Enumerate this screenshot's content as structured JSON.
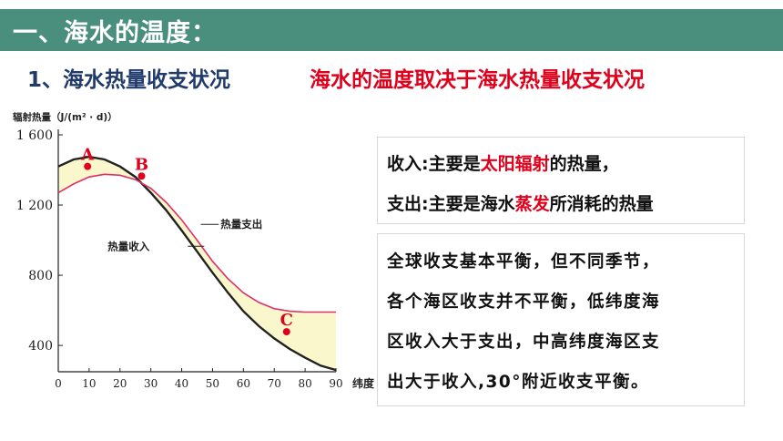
{
  "header": {
    "title": "一、海水的温度："
  },
  "subtitle": {
    "left": "1、海水热量收支状况",
    "right": "海水的温度取决于海水热量收支状况"
  },
  "chart_data": {
    "type": "line",
    "ylabel": "辐射热量（J/(m² · d)）",
    "xlabel": "纬度",
    "ylim": [
      250,
      1600
    ],
    "xlim": [
      0,
      90
    ],
    "yticks": [
      {
        "value": 400,
        "label": "400"
      },
      {
        "value": 800,
        "label": "800"
      },
      {
        "value": 1200,
        "label": "1 200"
      },
      {
        "value": 1600,
        "label": "1 600"
      }
    ],
    "xticks": [
      0,
      10,
      20,
      30,
      40,
      50,
      60,
      70,
      80,
      90
    ],
    "series": [
      {
        "name": "热量收入",
        "color": "#222222",
        "x": [
          0,
          5,
          10,
          15,
          20,
          25,
          30,
          35,
          40,
          45,
          50,
          55,
          60,
          65,
          70,
          75,
          80,
          85,
          90
        ],
        "values": [
          1420,
          1460,
          1475,
          1460,
          1420,
          1360,
          1270,
          1170,
          1055,
          935,
          815,
          700,
          595,
          510,
          440,
          380,
          330,
          285,
          260
        ]
      },
      {
        "name": "热量支出",
        "color": "#e0306a",
        "x": [
          0,
          5,
          10,
          15,
          20,
          25,
          30,
          35,
          40,
          45,
          50,
          55,
          60,
          65,
          70,
          75,
          80,
          85,
          90
        ],
        "values": [
          1270,
          1320,
          1360,
          1375,
          1370,
          1345,
          1295,
          1215,
          1115,
          1000,
          880,
          780,
          700,
          645,
          610,
          595,
          590,
          590,
          590
        ]
      }
    ],
    "points": [
      {
        "label": "A",
        "x": 9.5,
        "y": 1420
      },
      {
        "label": "B",
        "x": 27,
        "y": 1365
      },
      {
        "label": "C",
        "x": 74,
        "y": 478
      }
    ],
    "fill_color": "#fbf7cc"
  },
  "box1": {
    "line1": {
      "pre": "收入:主要是",
      "em": "太阳辐射",
      "post": "的热量，"
    },
    "line2": {
      "pre": "支出:主要是海水",
      "em": "蒸发",
      "post": "所消耗的热量"
    }
  },
  "box2": {
    "lines": [
      "全球收支基本平衡，但不同季节，",
      "各个海区收支并不平衡，低纬度海",
      "区收入大于支出，中高纬度海区支",
      "出大于收入,30°附近收支平衡。"
    ]
  }
}
